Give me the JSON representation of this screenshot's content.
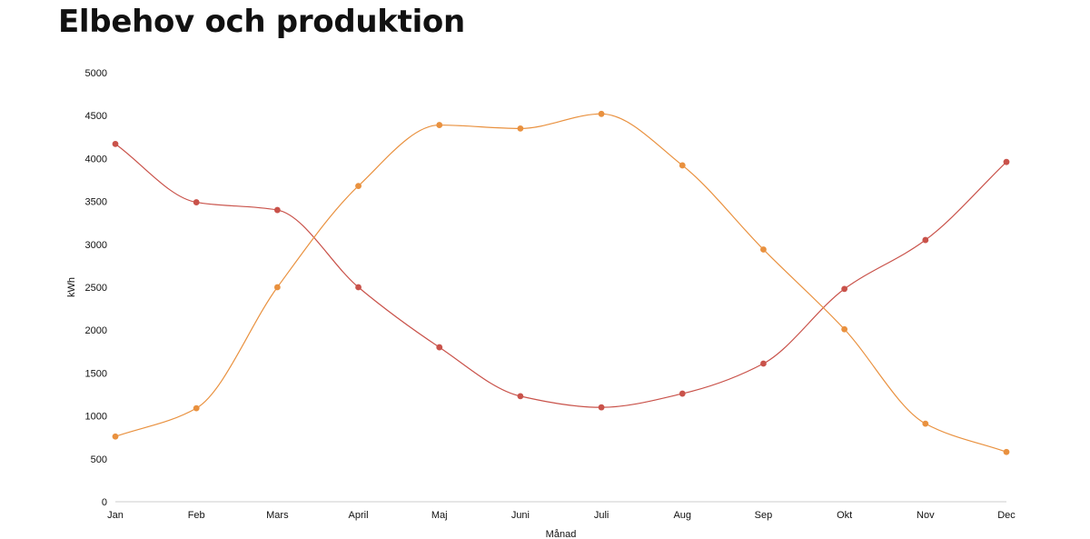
{
  "title": "Elbehov och produktion",
  "colors": {
    "demand": "#c9524a",
    "production": "#e9913f",
    "axis": "#cccccc"
  },
  "chart_data": {
    "type": "line",
    "title": "Elbehov och produktion",
    "xlabel": "Månad",
    "ylabel": "kWh",
    "categories": [
      "Jan",
      "Feb",
      "Mars",
      "April",
      "Maj",
      "Juni",
      "Juli",
      "Aug",
      "Sep",
      "Okt",
      "Nov",
      "Dec"
    ],
    "ylim": [
      0,
      5000
    ],
    "yticks": [
      0,
      500,
      1000,
      1500,
      2000,
      2500,
      3000,
      3500,
      4000,
      4500,
      5000
    ],
    "grid": false,
    "legend": "none",
    "series": [
      {
        "color": "#c9524a",
        "values": [
          4170,
          3490,
          3400,
          2500,
          1800,
          1230,
          1100,
          1260,
          1610,
          2480,
          3050,
          3960
        ]
      },
      {
        "color": "#e9913f",
        "values": [
          760,
          1090,
          2500,
          3680,
          4390,
          4350,
          4520,
          3920,
          2940,
          2010,
          910,
          580
        ]
      }
    ]
  }
}
